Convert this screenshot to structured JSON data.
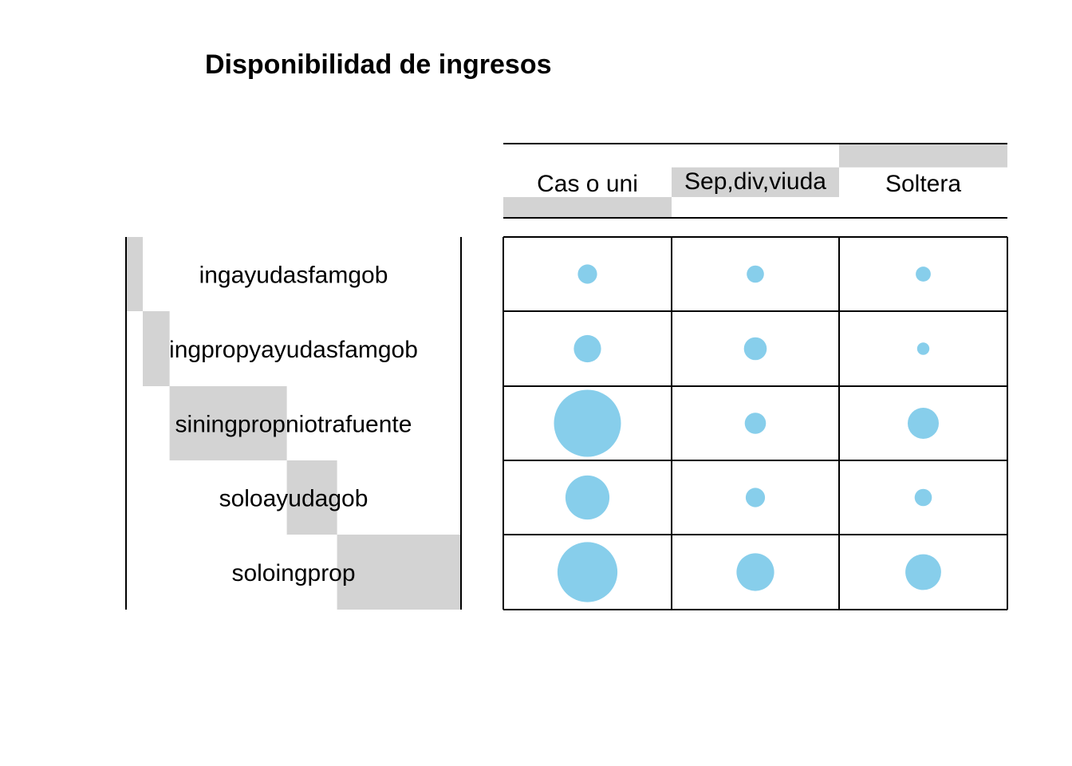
{
  "chart_data": {
    "type": "balloon",
    "title": "Disponibilidad de ingresos",
    "columns": [
      "Cas o uni",
      "Sep,div,viuda",
      "Soltera"
    ],
    "rows": [
      "ingayudasfamgob",
      "ingpropyayudasfamgob",
      "siningpropniotrafuente",
      "soloayudagob",
      "soloingprop"
    ],
    "values": [
      [
        1.0,
        0.8,
        0.6
      ],
      [
        2.0,
        1.4,
        0.4
      ],
      [
        12.0,
        1.2,
        2.6
      ],
      [
        5.2,
        1.0,
        0.8
      ],
      [
        9.6,
        3.8,
        3.4
      ]
    ],
    "column_margin_shares": [
      0.28,
      0.68,
      1.0
    ],
    "row_margin_shares": [
      0.05,
      0.08,
      0.35,
      0.15,
      0.37
    ],
    "colors": {
      "bubble": "#87CEEB",
      "margin_bar": "#D3D3D3",
      "grid": "#000000",
      "text": "#000000"
    }
  }
}
